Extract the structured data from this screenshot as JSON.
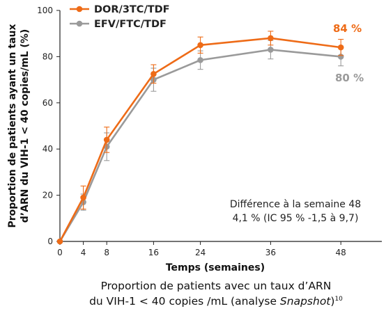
{
  "chart_data": {
    "type": "line",
    "x": [
      0,
      4,
      8,
      16,
      24,
      36,
      48
    ],
    "xticks": [
      0,
      4,
      8,
      16,
      24,
      36,
      48
    ],
    "xlim": [
      0,
      55
    ],
    "ylim": [
      0,
      100
    ],
    "yticks": [
      0,
      20,
      40,
      60,
      80,
      100
    ],
    "xlabel": "Temps (semaines)",
    "ylabel_line1": "Proportion de patients ayant un taux",
    "ylabel_line2": "d’ARN du VIH-1 < 40 copies/mL (%)",
    "series": [
      {
        "name": "DOR/3TC/TDF",
        "color": "#ee6b17",
        "values": [
          0,
          19,
          44,
          72.5,
          85,
          88,
          84
        ],
        "err": [
          0,
          5,
          5.5,
          4,
          3.5,
          3,
          3.5
        ]
      },
      {
        "name": "EFV/FTC/TDF",
        "color": "#9a9a9a",
        "values": [
          0,
          17,
          41,
          70,
          78.5,
          83,
          80
        ],
        "err": [
          0,
          3.5,
          6,
          5,
          4,
          4,
          4
        ]
      }
    ],
    "end_labels": [
      "84 %",
      "80 %"
    ],
    "annotation_line1": "Différence à la semaine 48",
    "annotation_line2": "4,1 % (IC 95 % -1,5 à 9,7)",
    "legend_position": "top-left"
  },
  "caption": {
    "line1": "Proportion de patients avec un taux d’ARN",
    "line2_prefix": "du VIH-1 < 40 copies /mL (analyse ",
    "line2_italic": "Snapshot",
    "line2_suffix": ")",
    "superscript": "10"
  }
}
